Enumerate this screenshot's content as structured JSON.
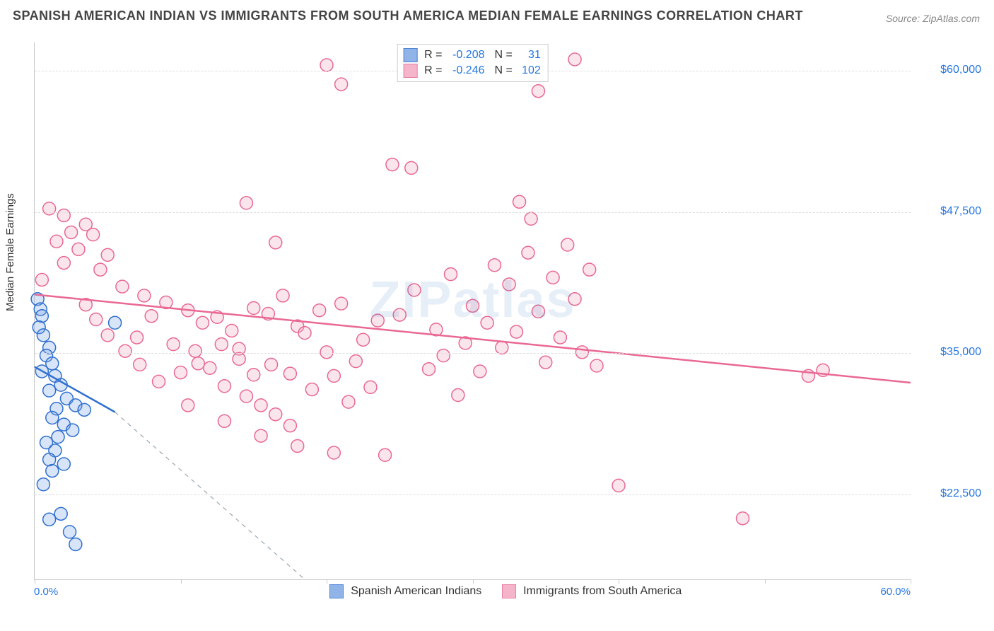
{
  "title": "SPANISH AMERICAN INDIAN VS IMMIGRANTS FROM SOUTH AMERICA MEDIAN FEMALE EARNINGS CORRELATION CHART",
  "source": "Source: ZipAtlas.com",
  "watermark": "ZIPatlas",
  "y_axis_label": "Median Female Earnings",
  "chart": {
    "type": "scatter",
    "background_color": "#ffffff",
    "grid_color": "#dddddd",
    "axis_color": "#c8c8c8",
    "x": {
      "min": 0.0,
      "max": 60.0,
      "min_label": "0.0%",
      "max_label": "60.0%",
      "ticks": [
        0,
        10,
        20,
        30,
        40,
        50,
        60
      ]
    },
    "y": {
      "min": 15000,
      "max": 62500,
      "gridlines": [
        {
          "value": 22500,
          "label": "$22,500"
        },
        {
          "value": 35000,
          "label": "$35,000"
        },
        {
          "value": 47500,
          "label": "$47,500"
        },
        {
          "value": 60000,
          "label": "$60,000"
        }
      ]
    },
    "marker_radius": 9,
    "marker_stroke_width": 1.5,
    "marker_fill_opacity": 0.3,
    "trend_line_width": 2.5,
    "trend_dash_width": 1.2,
    "trend_dash_pattern": "6 6"
  },
  "series": [
    {
      "id": "spanish_american_indians",
      "label": "Spanish American Indians",
      "stroke": "#2f6fd0",
      "fill": "#7ea7e4",
      "R": "-0.208",
      "N": "31",
      "trend": {
        "x1": 0.0,
        "y1": 33800,
        "x2": 5.5,
        "y2": 29800,
        "extrapolate_to_x": 18.5,
        "extrapolate_y": 15000
      },
      "points": [
        {
          "x": 0.2,
          "y": 39800
        },
        {
          "x": 0.4,
          "y": 38900
        },
        {
          "x": 0.5,
          "y": 38300
        },
        {
          "x": 0.3,
          "y": 37300
        },
        {
          "x": 0.6,
          "y": 36600
        },
        {
          "x": 1.0,
          "y": 35500
        },
        {
          "x": 0.8,
          "y": 34800
        },
        {
          "x": 1.2,
          "y": 34100
        },
        {
          "x": 0.5,
          "y": 33400
        },
        {
          "x": 1.4,
          "y": 33000
        },
        {
          "x": 1.8,
          "y": 32200
        },
        {
          "x": 1.0,
          "y": 31700
        },
        {
          "x": 2.2,
          "y": 31000
        },
        {
          "x": 2.8,
          "y": 30400
        },
        {
          "x": 1.5,
          "y": 30100
        },
        {
          "x": 3.4,
          "y": 30000
        },
        {
          "x": 1.2,
          "y": 29300
        },
        {
          "x": 2.0,
          "y": 28700
        },
        {
          "x": 2.6,
          "y": 28200
        },
        {
          "x": 1.6,
          "y": 27600
        },
        {
          "x": 0.8,
          "y": 27100
        },
        {
          "x": 1.4,
          "y": 26400
        },
        {
          "x": 1.0,
          "y": 25600
        },
        {
          "x": 2.0,
          "y": 25200
        },
        {
          "x": 1.2,
          "y": 24600
        },
        {
          "x": 5.5,
          "y": 37700
        },
        {
          "x": 1.8,
          "y": 20800
        },
        {
          "x": 1.0,
          "y": 20300
        },
        {
          "x": 2.4,
          "y": 19200
        },
        {
          "x": 2.8,
          "y": 18100
        },
        {
          "x": 0.6,
          "y": 23400
        }
      ]
    },
    {
      "id": "immigrants_south_america",
      "label": "Immigrants from South America",
      "stroke": "#e96894",
      "fill": "#f3a9c1",
      "R": "-0.246",
      "N": "102",
      "trend": {
        "x1": 0.0,
        "y1": 40200,
        "x2": 60.0,
        "y2": 32400
      },
      "points": [
        {
          "x": 20.0,
          "y": 60500
        },
        {
          "x": 37.0,
          "y": 61000
        },
        {
          "x": 21.0,
          "y": 58800
        },
        {
          "x": 34.5,
          "y": 58200
        },
        {
          "x": 24.5,
          "y": 51700
        },
        {
          "x": 25.8,
          "y": 51400
        },
        {
          "x": 33.2,
          "y": 48400
        },
        {
          "x": 34.0,
          "y": 46900
        },
        {
          "x": 1.0,
          "y": 47800
        },
        {
          "x": 2.0,
          "y": 47200
        },
        {
          "x": 3.5,
          "y": 46400
        },
        {
          "x": 2.5,
          "y": 45700
        },
        {
          "x": 4.0,
          "y": 45500
        },
        {
          "x": 1.5,
          "y": 44900
        },
        {
          "x": 3.0,
          "y": 44200
        },
        {
          "x": 5.0,
          "y": 43700
        },
        {
          "x": 2.0,
          "y": 43000
        },
        {
          "x": 4.5,
          "y": 42400
        },
        {
          "x": 0.5,
          "y": 41500
        },
        {
          "x": 14.5,
          "y": 48300
        },
        {
          "x": 16.5,
          "y": 44800
        },
        {
          "x": 6.0,
          "y": 40900
        },
        {
          "x": 7.5,
          "y": 40100
        },
        {
          "x": 9.0,
          "y": 39500
        },
        {
          "x": 10.5,
          "y": 38800
        },
        {
          "x": 8.0,
          "y": 38300
        },
        {
          "x": 11.5,
          "y": 37700
        },
        {
          "x": 12.5,
          "y": 38200
        },
        {
          "x": 13.5,
          "y": 37000
        },
        {
          "x": 7.0,
          "y": 36400
        },
        {
          "x": 9.5,
          "y": 35800
        },
        {
          "x": 11.0,
          "y": 35200
        },
        {
          "x": 14.0,
          "y": 35400
        },
        {
          "x": 15.0,
          "y": 39000
        },
        {
          "x": 16.0,
          "y": 38500
        },
        {
          "x": 17.0,
          "y": 40100
        },
        {
          "x": 18.0,
          "y": 37400
        },
        {
          "x": 17.5,
          "y": 33200
        },
        {
          "x": 18.5,
          "y": 36800
        },
        {
          "x": 19.0,
          "y": 31800
        },
        {
          "x": 20.0,
          "y": 35100
        },
        {
          "x": 19.5,
          "y": 38800
        },
        {
          "x": 20.5,
          "y": 33000
        },
        {
          "x": 21.0,
          "y": 39400
        },
        {
          "x": 21.5,
          "y": 30700
        },
        {
          "x": 22.0,
          "y": 34300
        },
        {
          "x": 22.5,
          "y": 36200
        },
        {
          "x": 23.0,
          "y": 32000
        },
        {
          "x": 23.5,
          "y": 37900
        },
        {
          "x": 24.0,
          "y": 26000
        },
        {
          "x": 12.0,
          "y": 33700
        },
        {
          "x": 13.0,
          "y": 32100
        },
        {
          "x": 14.5,
          "y": 31200
        },
        {
          "x": 15.5,
          "y": 30400
        },
        {
          "x": 16.5,
          "y": 29600
        },
        {
          "x": 17.5,
          "y": 28600
        },
        {
          "x": 16.2,
          "y": 34000
        },
        {
          "x": 15.0,
          "y": 33100
        },
        {
          "x": 14.0,
          "y": 34500
        },
        {
          "x": 12.8,
          "y": 35800
        },
        {
          "x": 11.2,
          "y": 34100
        },
        {
          "x": 10.0,
          "y": 33300
        },
        {
          "x": 8.5,
          "y": 32500
        },
        {
          "x": 7.2,
          "y": 34000
        },
        {
          "x": 6.2,
          "y": 35200
        },
        {
          "x": 5.0,
          "y": 36600
        },
        {
          "x": 4.2,
          "y": 38000
        },
        {
          "x": 3.5,
          "y": 39300
        },
        {
          "x": 25.0,
          "y": 38400
        },
        {
          "x": 26.0,
          "y": 40600
        },
        {
          "x": 27.0,
          "y": 33600
        },
        {
          "x": 27.5,
          "y": 37100
        },
        {
          "x": 28.0,
          "y": 34800
        },
        {
          "x": 28.5,
          "y": 42000
        },
        {
          "x": 29.0,
          "y": 31300
        },
        {
          "x": 29.5,
          "y": 35900
        },
        {
          "x": 30.0,
          "y": 39200
        },
        {
          "x": 30.5,
          "y": 33400
        },
        {
          "x": 31.0,
          "y": 37700
        },
        {
          "x": 31.5,
          "y": 42800
        },
        {
          "x": 32.0,
          "y": 35500
        },
        {
          "x": 32.5,
          "y": 41100
        },
        {
          "x": 33.0,
          "y": 36900
        },
        {
          "x": 33.8,
          "y": 43900
        },
        {
          "x": 34.5,
          "y": 38700
        },
        {
          "x": 35.0,
          "y": 34200
        },
        {
          "x": 35.5,
          "y": 41700
        },
        {
          "x": 36.0,
          "y": 36400
        },
        {
          "x": 36.5,
          "y": 44600
        },
        {
          "x": 37.0,
          "y": 39800
        },
        {
          "x": 37.5,
          "y": 35100
        },
        {
          "x": 38.0,
          "y": 42400
        },
        {
          "x": 38.5,
          "y": 33900
        },
        {
          "x": 40.0,
          "y": 23300
        },
        {
          "x": 48.5,
          "y": 20400
        },
        {
          "x": 53.0,
          "y": 33000
        },
        {
          "x": 54.0,
          "y": 33500
        },
        {
          "x": 20.5,
          "y": 26200
        },
        {
          "x": 18.0,
          "y": 26800
        },
        {
          "x": 15.5,
          "y": 27700
        },
        {
          "x": 13.0,
          "y": 29000
        },
        {
          "x": 10.5,
          "y": 30400
        }
      ]
    }
  ]
}
